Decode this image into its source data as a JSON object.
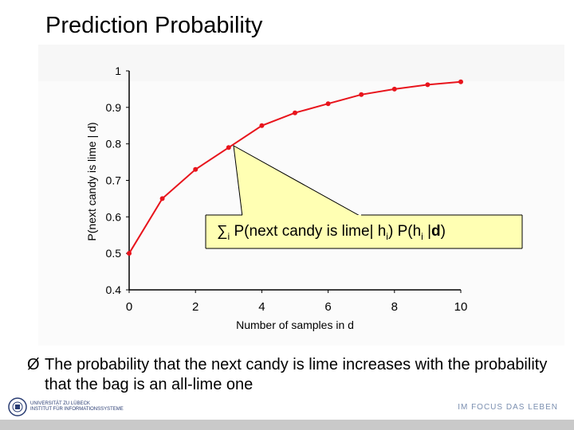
{
  "slide": {
    "title": "Prediction Probability",
    "bullet_marker": "Ø",
    "bullet_text": "The probability that the next candy is lime increases with the probability that the bag is an all-lime one",
    "footer_motto": "IM FOCUS DAS LEBEN",
    "logo_line1": "UNIVERSITÄT ZU LÜBECK",
    "logo_line2": "INSTITUT FÜR INFORMATIONSSYSTEME"
  },
  "callout": {
    "sum_symbol": "∑",
    "sum_index": "i",
    "text_a": " P(next candy is lime| h",
    "sub_i1": "i",
    "text_b": ") P(h",
    "sub_i2": "i",
    "text_c": " |",
    "bold_d": "d",
    "text_e": ")"
  },
  "chart_data": {
    "type": "line",
    "xlabel": "Number of samples in d",
    "ylabel": "P(next candy is lime | d)",
    "xlim": [
      0,
      10
    ],
    "ylim": [
      0.4,
      1.0
    ],
    "x_ticks": [
      "0",
      "2",
      "4",
      "6",
      "8",
      "10"
    ],
    "y_ticks": [
      "0.4",
      "0.5",
      "0.6",
      "0.7",
      "0.8",
      "0.9",
      "1"
    ],
    "color": "#e8141c",
    "series": [
      {
        "x": [
          0,
          1,
          2,
          3,
          4,
          5,
          6,
          7,
          8,
          9,
          10
        ],
        "y": [
          0.5,
          0.65,
          0.73,
          0.79,
          0.85,
          0.885,
          0.91,
          0.935,
          0.95,
          0.962,
          0.97
        ]
      }
    ]
  }
}
